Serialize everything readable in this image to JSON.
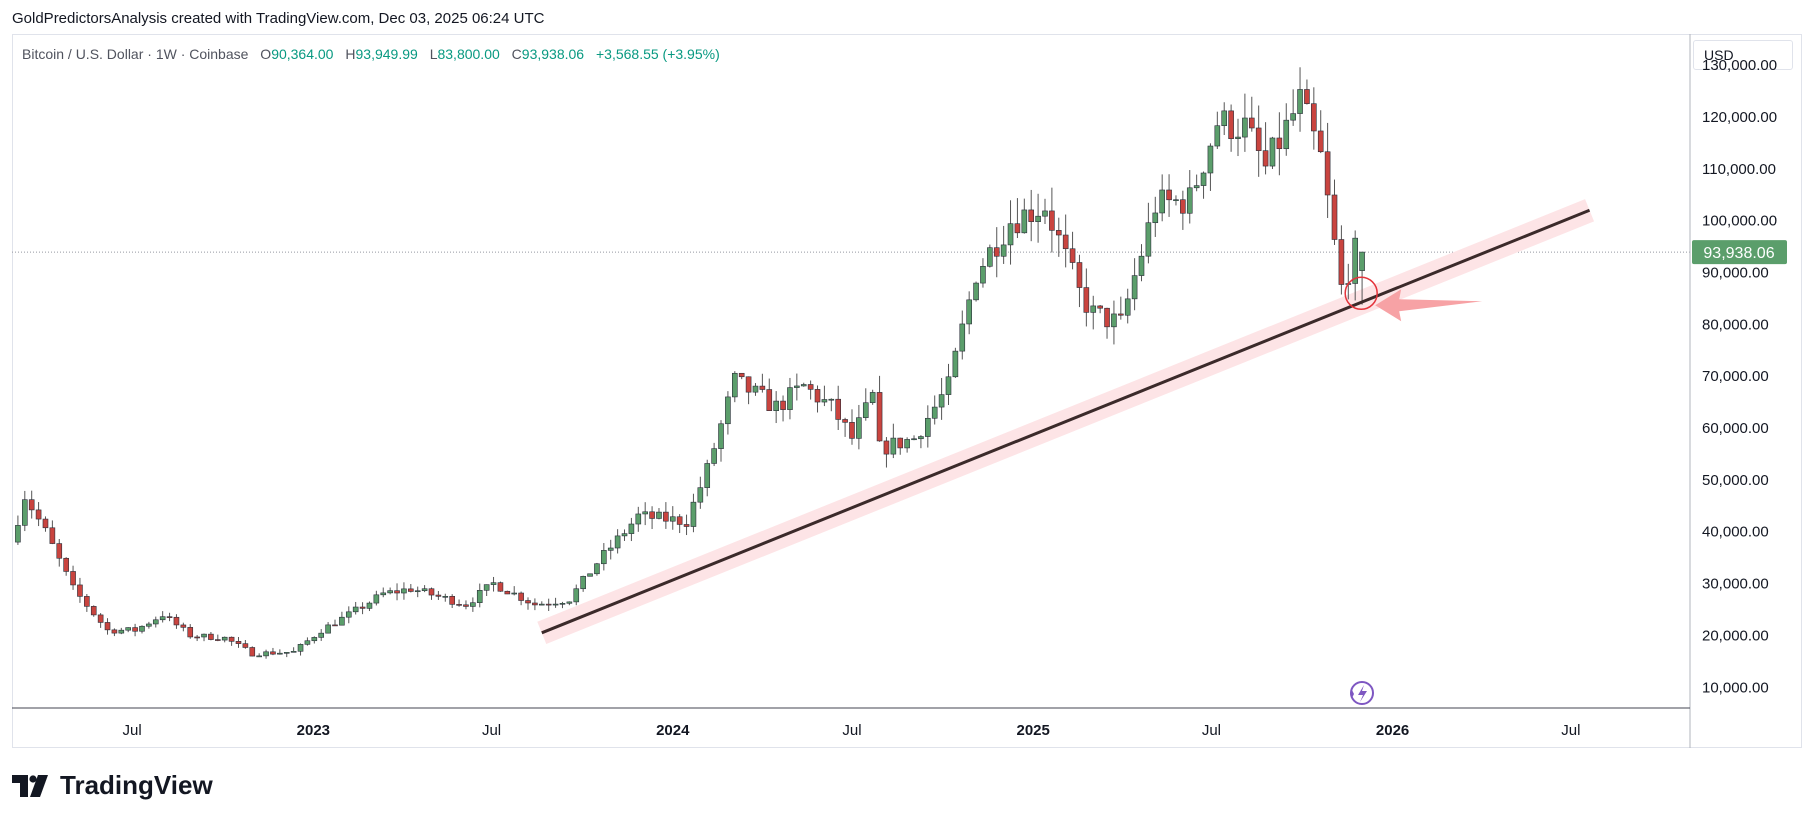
{
  "header": {
    "attribution": "GoldPredictorsAnalysis created with TradingView.com, Dec 03, 2025 06:24 UTC"
  },
  "symbol": {
    "name": "Bitcoin / U.S. Dollar · 1W · Coinbase",
    "open_label": "O",
    "open": "90,364.00",
    "high_label": "H",
    "high": "93,949.99",
    "low_label": "L",
    "low": "83,800.00",
    "close_label": "C",
    "close": "93,938.06",
    "change": "+3,568.55 (+3.95%)"
  },
  "currency": "USD",
  "price_badge": "93,938.06",
  "logo_text": "TradingView",
  "colors": {
    "up": "#5b9e6b",
    "down": "#c9443f",
    "badge": "#5b9e6b",
    "trend": "#3b2a2a",
    "band": "#fde4e6",
    "arrow": "#f7a2a5",
    "circle": "#e4333b"
  },
  "chart_data": {
    "type": "candlestick",
    "title": "Bitcoin / U.S. Dollar · 1W · Coinbase",
    "y_axis_labels": [
      "130,000.00",
      "120,000.00",
      "110,000.00",
      "100,000.00",
      "90,000.00",
      "80,000.00",
      "70,000.00",
      "60,000.00",
      "50,000.00",
      "40,000.00",
      "30,000.00",
      "20,000.00",
      "10,000.00"
    ],
    "y_axis_values": [
      130000,
      120000,
      110000,
      100000,
      90000,
      80000,
      70000,
      60000,
      50000,
      40000,
      30000,
      20000,
      10000
    ],
    "x_axis_labels": [
      "Jul",
      "2023",
      "Jul",
      "2024",
      "Jul",
      "2025",
      "Jul",
      "2026",
      "Jul"
    ],
    "x_axis_dates": [
      "2022-07",
      "2023-01",
      "2023-07",
      "2024-01",
      "2024-07",
      "2025-01",
      "2025-07",
      "2026-01",
      "2026-07"
    ],
    "ylim": [
      6000,
      136000
    ],
    "x_range": [
      "2022-03-01",
      "2026-10-30"
    ],
    "current_price": 93938.06,
    "series_approx": [
      {
        "date": "2022-03-07",
        "value": 38000
      },
      {
        "date": "2022-03-21",
        "value": 47000
      },
      {
        "date": "2022-04-11",
        "value": 40000
      },
      {
        "date": "2022-05-09",
        "value": 29000
      },
      {
        "date": "2022-06-13",
        "value": 21000
      },
      {
        "date": "2022-07-11",
        "value": 21000
      },
      {
        "date": "2022-08-08",
        "value": 24000
      },
      {
        "date": "2022-09-05",
        "value": 20000
      },
      {
        "date": "2022-10-10",
        "value": 19500
      },
      {
        "date": "2022-11-07",
        "value": 16500
      },
      {
        "date": "2022-12-19",
        "value": 16800
      },
      {
        "date": "2023-01-16",
        "value": 21000
      },
      {
        "date": "2023-02-13",
        "value": 24000
      },
      {
        "date": "2023-03-20",
        "value": 28000
      },
      {
        "date": "2023-04-17",
        "value": 29000
      },
      {
        "date": "2023-06-12",
        "value": 26000
      },
      {
        "date": "2023-07-10",
        "value": 30000
      },
      {
        "date": "2023-08-21",
        "value": 26000
      },
      {
        "date": "2023-09-25",
        "value": 27000
      },
      {
        "date": "2023-10-23",
        "value": 34000
      },
      {
        "date": "2023-12-04",
        "value": 43000
      },
      {
        "date": "2024-01-22",
        "value": 42000
      },
      {
        "date": "2024-02-12",
        "value": 52000
      },
      {
        "date": "2024-03-11",
        "value": 69000
      },
      {
        "date": "2024-04-22",
        "value": 64000
      },
      {
        "date": "2024-05-20",
        "value": 68000
      },
      {
        "date": "2024-06-17",
        "value": 64000
      },
      {
        "date": "2024-07-08",
        "value": 58000
      },
      {
        "date": "2024-07-29",
        "value": 66000
      },
      {
        "date": "2024-08-05",
        "value": 56000
      },
      {
        "date": "2024-09-09",
        "value": 58000
      },
      {
        "date": "2024-10-14",
        "value": 68000
      },
      {
        "date": "2024-11-11",
        "value": 90000
      },
      {
        "date": "2024-12-16",
        "value": 100000
      },
      {
        "date": "2025-01-20",
        "value": 103000
      },
      {
        "date": "2025-02-24",
        "value": 86000
      },
      {
        "date": "2025-03-10",
        "value": 82000
      },
      {
        "date": "2025-04-07",
        "value": 80000
      },
      {
        "date": "2025-05-12",
        "value": 103000
      },
      {
        "date": "2025-06-16",
        "value": 104000
      },
      {
        "date": "2025-07-14",
        "value": 119000
      },
      {
        "date": "2025-08-11",
        "value": 118000
      },
      {
        "date": "2025-09-01",
        "value": 110000
      },
      {
        "date": "2025-10-06",
        "value": 123000
      },
      {
        "date": "2025-10-27",
        "value": 112000
      },
      {
        "date": "2025-11-17",
        "value": 87000
      },
      {
        "date": "2025-12-01",
        "value": 93938
      }
    ],
    "annotations": [
      {
        "type": "trendline",
        "from": {
          "date": "2023-08-21",
          "value": 20500
        },
        "to": {
          "date": "2026-07-20",
          "value": 102000
        }
      },
      {
        "type": "circle",
        "at": {
          "date": "2025-11-24",
          "value": 86000
        }
      },
      {
        "type": "arrow",
        "pointing_to": {
          "date": "2025-11-24",
          "value": 86000
        }
      }
    ]
  }
}
